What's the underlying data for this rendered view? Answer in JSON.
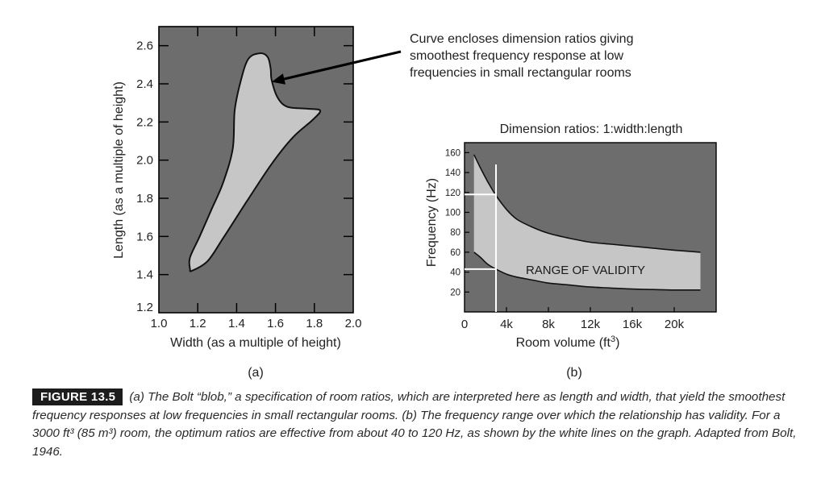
{
  "colors": {
    "panel_bg": "#6d6d6d",
    "region_fill": "#c6c6c6",
    "outline": "#111111",
    "white_lines": "#ffffff"
  },
  "chart_data": [
    {
      "type": "area",
      "id": "a",
      "panel_label": "(a)",
      "xlabel": "Width (as a multiple of height)",
      "ylabel": "Length (as a multiple of height)",
      "xlim": [
        1.0,
        2.0
      ],
      "ylim": [
        1.2,
        2.7
      ],
      "x_ticks": [
        "1.0",
        "1.2",
        "1.4",
        "1.6",
        "1.8",
        "2.0"
      ],
      "y_ticks": [
        "1.2",
        "1.4",
        "1.6",
        "1.8",
        "2.0",
        "2.2",
        "2.4",
        "2.6"
      ],
      "region_outline": [
        {
          "x": 1.17,
          "y": 1.42
        },
        {
          "x": 1.25,
          "y": 1.47
        },
        {
          "x": 1.33,
          "y": 1.59
        },
        {
          "x": 1.45,
          "y": 1.78
        },
        {
          "x": 1.58,
          "y": 1.98
        },
        {
          "x": 1.69,
          "y": 2.12
        },
        {
          "x": 1.79,
          "y": 2.21
        },
        {
          "x": 1.83,
          "y": 2.26
        },
        {
          "x": 1.76,
          "y": 2.27
        },
        {
          "x": 1.66,
          "y": 2.28
        },
        {
          "x": 1.61,
          "y": 2.33
        },
        {
          "x": 1.58,
          "y": 2.42
        },
        {
          "x": 1.575,
          "y": 2.48
        },
        {
          "x": 1.56,
          "y": 2.54
        },
        {
          "x": 1.52,
          "y": 2.56
        },
        {
          "x": 1.46,
          "y": 2.53
        },
        {
          "x": 1.42,
          "y": 2.41
        },
        {
          "x": 1.39,
          "y": 2.26
        },
        {
          "x": 1.38,
          "y": 2.06
        },
        {
          "x": 1.33,
          "y": 1.88
        },
        {
          "x": 1.27,
          "y": 1.74
        },
        {
          "x": 1.21,
          "y": 1.6
        },
        {
          "x": 1.16,
          "y": 1.49
        },
        {
          "x": 1.16,
          "y": 1.43
        }
      ],
      "annotation": {
        "lines": [
          "Curve encloses dimension ratios giving",
          "smoothest frequency response at low",
          "frequencies in small rectangular rooms"
        ],
        "arrow_target": {
          "x": 1.58,
          "y": 2.41
        }
      }
    },
    {
      "type": "area",
      "id": "b",
      "panel_label": "(b)",
      "title": "Dimension ratios: 1:width:length",
      "xlabel": "Room volume (ft",
      "xlabel_sup": "3",
      "xlabel_end": ")",
      "ylabel": "Frequency (Hz)",
      "xlim": [
        0,
        24
      ],
      "ylim": [
        0,
        170
      ],
      "x_ticks": [
        {
          "v": 0,
          "label": "0"
        },
        {
          "v": 4,
          "label": "4k"
        },
        {
          "v": 8,
          "label": "8k"
        },
        {
          "v": 12,
          "label": "12k"
        },
        {
          "v": 16,
          "label": "16k"
        },
        {
          "v": 20,
          "label": "20k"
        }
      ],
      "y_ticks": [
        20,
        40,
        60,
        80,
        100,
        120,
        140,
        160
      ],
      "band_label": "RANGE OF VALIDITY",
      "x_unit_note": "thousands of ft^3",
      "upper_curve": [
        {
          "x": 0.9,
          "y": 158
        },
        {
          "x": 1.5,
          "y": 145
        },
        {
          "x": 2.2,
          "y": 131
        },
        {
          "x": 3.0,
          "y": 117
        },
        {
          "x": 4.0,
          "y": 103
        },
        {
          "x": 5.0,
          "y": 93
        },
        {
          "x": 6.5,
          "y": 85
        },
        {
          "x": 8.0,
          "y": 79
        },
        {
          "x": 10.0,
          "y": 74
        },
        {
          "x": 12.0,
          "y": 70
        },
        {
          "x": 14.0,
          "y": 68
        },
        {
          "x": 16.0,
          "y": 66
        },
        {
          "x": 18.0,
          "y": 64
        },
        {
          "x": 20.0,
          "y": 62
        },
        {
          "x": 22.5,
          "y": 60
        }
      ],
      "lower_curve": [
        {
          "x": 0.9,
          "y": 60
        },
        {
          "x": 1.5,
          "y": 55
        },
        {
          "x": 2.2,
          "y": 48
        },
        {
          "x": 3.0,
          "y": 43
        },
        {
          "x": 4.0,
          "y": 38
        },
        {
          "x": 5.0,
          "y": 35
        },
        {
          "x": 6.5,
          "y": 32
        },
        {
          "x": 8.0,
          "y": 29
        },
        {
          "x": 10.0,
          "y": 27
        },
        {
          "x": 12.0,
          "y": 25
        },
        {
          "x": 14.0,
          "y": 24
        },
        {
          "x": 16.0,
          "y": 23
        },
        {
          "x": 18.0,
          "y": 22.5
        },
        {
          "x": 20.0,
          "y": 22
        },
        {
          "x": 22.5,
          "y": 22
        }
      ],
      "reference_volume": 3,
      "reference_low": 43,
      "reference_high": 118
    }
  ],
  "caption": {
    "label": "FIGURE 13.5",
    "text": "(a) The Bolt “blob,” a specification of room ratios, which are interpreted here as length and width, that yield the smoothest frequency responses at low frequencies in small rectangular rooms. (b) The frequency range over which the relationship has validity. For a 3000 ft³ (85 m³) room, the optimum ratios are effective from about 40 to 120 Hz, as shown by the white lines on the graph. Adapted from Bolt, 1946."
  }
}
